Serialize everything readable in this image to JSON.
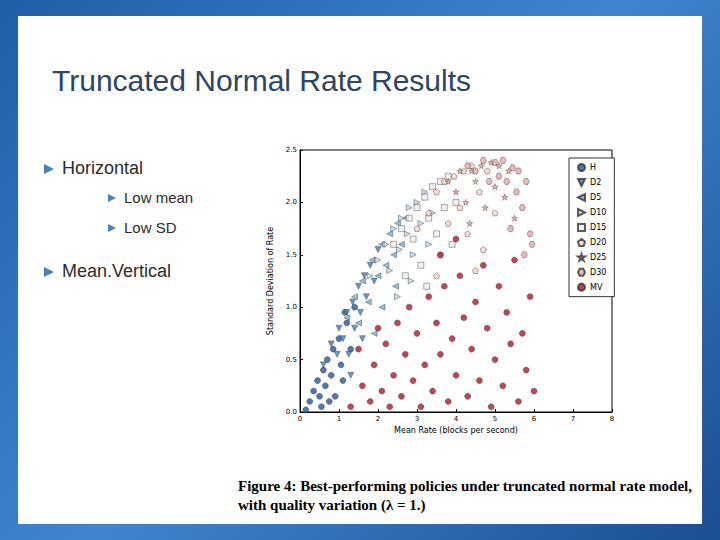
{
  "slide": {
    "title": "Truncated Normal Rate Results",
    "bullets": [
      {
        "text": "Horizontal",
        "sub": [
          "Low mean",
          "Low SD"
        ]
      },
      {
        "text": "Mean.Vertical",
        "sub": []
      }
    ]
  },
  "chart_data": {
    "type": "scatter",
    "caption": "Figure 4: Best-performing policies under truncated normal rate model, with quality variation (λ = 1.)",
    "x_label": "Mean Rate (blocks per second)",
    "y_label": "Standard Deviation of Rate",
    "xlim": [
      0,
      8
    ],
    "xticks": [
      0,
      1,
      2,
      3,
      4,
      5,
      6,
      7,
      8
    ],
    "ylim": [
      0,
      2.5
    ],
    "yticks": [
      {
        "value": 0,
        "label": "0.0"
      },
      0.5,
      {
        "value": 1,
        "label": "1.0"
      },
      1.5,
      {
        "value": 2,
        "label": "2.0"
      },
      2.5
    ],
    "grid": false,
    "legend": "upper right",
    "series": [
      {
        "name": "H",
        "color": "#2a5597",
        "marker": "circle",
        "values": [
          [
            0.15,
            0.02
          ],
          [
            0.25,
            0.1
          ],
          [
            0.35,
            0.2
          ],
          [
            0.45,
            0.3
          ],
          [
            0.5,
            0.15
          ],
          [
            0.6,
            0.4
          ],
          [
            0.65,
            0.25
          ],
          [
            0.7,
            0.5
          ],
          [
            0.8,
            0.35
          ],
          [
            0.85,
            0.6
          ],
          [
            0.9,
            0.15
          ],
          [
            1.0,
            0.7
          ],
          [
            1.05,
            0.45
          ],
          [
            1.1,
            0.3
          ],
          [
            1.2,
            0.85
          ],
          [
            1.3,
            0.6
          ],
          [
            0.55,
            0.05
          ],
          [
            0.75,
            0.1
          ],
          [
            1.4,
            1.0
          ],
          [
            1.15,
            0.95
          ]
        ]
      },
      {
        "name": "D2",
        "color": "#3f7fbf",
        "marker": "triangle_down",
        "values": [
          [
            0.6,
            0.45
          ],
          [
            0.8,
            0.65
          ],
          [
            0.95,
            0.55
          ],
          [
            1.0,
            0.8
          ],
          [
            1.1,
            0.7
          ],
          [
            1.2,
            0.95
          ],
          [
            1.25,
            0.55
          ],
          [
            1.35,
            1.05
          ],
          [
            1.4,
            0.8
          ],
          [
            1.5,
            1.2
          ],
          [
            1.55,
            0.95
          ],
          [
            1.65,
            1.3
          ],
          [
            1.7,
            1.1
          ],
          [
            1.8,
            1.4
          ],
          [
            1.9,
            1.25
          ],
          [
            2.0,
            1.55
          ],
          [
            1.3,
            0.35
          ],
          [
            1.6,
            0.7
          ]
        ]
      },
      {
        "name": "D5",
        "color": "#79aed6",
        "marker": "triangle_left",
        "values": [
          [
            1.2,
            0.9
          ],
          [
            1.4,
            1.1
          ],
          [
            1.5,
            0.85
          ],
          [
            1.6,
            1.25
          ],
          [
            1.75,
            1.05
          ],
          [
            1.85,
            1.45
          ],
          [
            2.0,
            1.3
          ],
          [
            2.1,
            1.6
          ],
          [
            2.2,
            1.4
          ],
          [
            2.3,
            1.7
          ],
          [
            2.4,
            1.5
          ],
          [
            2.5,
            1.8
          ],
          [
            2.6,
            1.6
          ],
          [
            2.1,
            1.0
          ],
          [
            2.7,
            1.85
          ],
          [
            1.9,
            0.75
          ],
          [
            2.45,
            1.2
          ]
        ]
      },
      {
        "name": "D10",
        "color": "#bcd6ea",
        "marker": "triangle_right",
        "values": [
          [
            1.8,
            1.3
          ],
          [
            2.0,
            1.45
          ],
          [
            2.2,
            1.6
          ],
          [
            2.3,
            1.35
          ],
          [
            2.4,
            1.75
          ],
          [
            2.55,
            1.55
          ],
          [
            2.6,
            1.85
          ],
          [
            2.75,
            1.7
          ],
          [
            2.8,
            1.95
          ],
          [
            2.9,
            1.5
          ],
          [
            3.0,
            2.0
          ],
          [
            3.1,
            1.8
          ],
          [
            3.2,
            2.1
          ],
          [
            3.3,
            1.6
          ],
          [
            2.5,
            1.1
          ],
          [
            2.85,
            1.25
          ],
          [
            3.4,
            1.9
          ]
        ]
      },
      {
        "name": "D15",
        "color": "#eeeeee",
        "marker": "square",
        "values": [
          [
            2.4,
            1.6
          ],
          [
            2.6,
            1.75
          ],
          [
            2.8,
            1.85
          ],
          [
            2.9,
            1.65
          ],
          [
            3.0,
            1.95
          ],
          [
            3.1,
            1.4
          ],
          [
            3.2,
            2.05
          ],
          [
            3.3,
            1.85
          ],
          [
            3.4,
            2.15
          ],
          [
            3.5,
            1.7
          ],
          [
            3.6,
            2.2
          ],
          [
            3.7,
            1.95
          ],
          [
            3.8,
            2.25
          ],
          [
            3.9,
            1.6
          ],
          [
            2.7,
            1.3
          ],
          [
            3.25,
            1.2
          ],
          [
            4.0,
            2.0
          ]
        ]
      },
      {
        "name": "D20",
        "color": "#f7d3c4",
        "marker": "pentagon",
        "values": [
          [
            3.0,
            1.75
          ],
          [
            3.3,
            1.9
          ],
          [
            3.5,
            2.1
          ],
          [
            3.6,
            1.5
          ],
          [
            3.7,
            2.2
          ],
          [
            3.8,
            1.8
          ],
          [
            3.95,
            2.25
          ],
          [
            4.1,
            1.95
          ],
          [
            4.2,
            2.3
          ],
          [
            4.3,
            1.7
          ],
          [
            4.4,
            2.35
          ],
          [
            4.6,
            2.1
          ],
          [
            4.7,
            1.55
          ],
          [
            4.8,
            2.3
          ],
          [
            5.0,
            1.9
          ],
          [
            3.5,
            1.3
          ],
          [
            4.5,
            1.35
          ]
        ]
      },
      {
        "name": "D25",
        "color": "#f0a891",
        "marker": "star",
        "values": [
          [
            3.8,
            2.2
          ],
          [
            4.0,
            2.1
          ],
          [
            4.1,
            2.3
          ],
          [
            4.25,
            2.0
          ],
          [
            4.4,
            2.3
          ],
          [
            4.5,
            2.2
          ],
          [
            4.65,
            2.35
          ],
          [
            4.75,
            1.95
          ],
          [
            4.9,
            2.38
          ],
          [
            5.0,
            2.15
          ],
          [
            5.1,
            2.35
          ],
          [
            5.25,
            2.05
          ],
          [
            5.35,
            2.3
          ],
          [
            5.5,
            1.85
          ],
          [
            4.35,
            1.8
          ]
        ]
      },
      {
        "name": "D30",
        "color": "#e3a7a8",
        "marker": "hexagon",
        "values": [
          [
            4.3,
            2.35
          ],
          [
            4.5,
            2.3
          ],
          [
            4.7,
            2.4
          ],
          [
            4.85,
            2.2
          ],
          [
            5.0,
            2.38
          ],
          [
            5.1,
            2.25
          ],
          [
            5.2,
            2.4
          ],
          [
            5.3,
            2.2
          ],
          [
            5.45,
            2.33
          ],
          [
            5.55,
            2.1
          ],
          [
            5.6,
            2.3
          ],
          [
            5.7,
            1.95
          ],
          [
            5.8,
            2.2
          ],
          [
            5.9,
            1.7
          ],
          [
            5.95,
            1.6
          ],
          [
            5.4,
            1.75
          ],
          [
            5.75,
            1.5
          ]
        ]
      },
      {
        "name": "MV",
        "color": "#b2182b",
        "marker": "circle",
        "values": [
          [
            1.3,
            0.05
          ],
          [
            1.6,
            0.25
          ],
          [
            1.8,
            0.1
          ],
          [
            1.9,
            0.45
          ],
          [
            2.1,
            0.2
          ],
          [
            2.2,
            0.65
          ],
          [
            2.3,
            0.05
          ],
          [
            2.4,
            0.35
          ],
          [
            2.5,
            0.85
          ],
          [
            2.6,
            0.15
          ],
          [
            2.7,
            0.55
          ],
          [
            2.8,
            1.0
          ],
          [
            2.9,
            0.3
          ],
          [
            3.0,
            0.75
          ],
          [
            3.1,
            0.05
          ],
          [
            3.2,
            0.45
          ],
          [
            3.3,
            1.1
          ],
          [
            3.4,
            0.2
          ],
          [
            3.5,
            0.85
          ],
          [
            3.6,
            0.55
          ],
          [
            3.7,
            1.2
          ],
          [
            3.8,
            0.1
          ],
          [
            3.9,
            0.7
          ],
          [
            4.0,
            0.35
          ],
          [
            4.1,
            1.3
          ],
          [
            4.2,
            0.9
          ],
          [
            4.3,
            0.15
          ],
          [
            4.4,
            0.6
          ],
          [
            4.5,
            1.05
          ],
          [
            4.6,
            0.3
          ],
          [
            4.7,
            1.4
          ],
          [
            4.8,
            0.8
          ],
          [
            4.9,
            0.05
          ],
          [
            5.0,
            0.5
          ],
          [
            5.1,
            1.2
          ],
          [
            5.2,
            0.25
          ],
          [
            5.3,
            0.95
          ],
          [
            5.4,
            0.65
          ],
          [
            5.5,
            1.45
          ],
          [
            5.6,
            0.1
          ],
          [
            5.7,
            0.75
          ],
          [
            5.8,
            0.4
          ],
          [
            5.9,
            1.1
          ],
          [
            6.0,
            0.2
          ],
          [
            3.6,
            1.5
          ],
          [
            4.0,
            1.65
          ],
          [
            2.0,
            0.8
          ],
          [
            1.5,
            0.6
          ]
        ]
      }
    ]
  }
}
